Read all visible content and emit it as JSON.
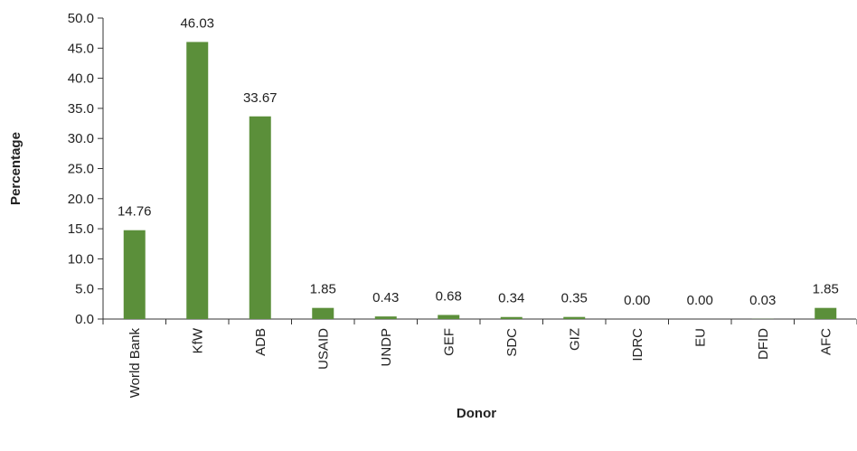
{
  "chart_data": {
    "type": "bar",
    "title": "",
    "xlabel": "Donor",
    "ylabel": "Percentage",
    "categories": [
      "World Bank",
      "KfW",
      "ADB",
      "USAID",
      "UNDP",
      "GEF",
      "SDC",
      "GIZ",
      "IDRC",
      "EU",
      "DFID",
      "AFC"
    ],
    "values": [
      14.76,
      46.03,
      33.67,
      1.85,
      0.43,
      0.68,
      0.34,
      0.35,
      0.0,
      0.0,
      0.03,
      1.85
    ],
    "value_labels": [
      "14.76",
      "46.03",
      "33.67",
      "1.85",
      "0.43",
      "0.68",
      "0.34",
      "0.35",
      "0.00",
      "0.00",
      "0.03",
      "1.85"
    ],
    "ylim": [
      0,
      50
    ],
    "yticks": [
      "0.0",
      "5.0",
      "10.0",
      "15.0",
      "20.0",
      "25.0",
      "30.0",
      "35.0",
      "40.0",
      "45.0",
      "50.0"
    ],
    "bar_color": "#5b8f3a",
    "grid": false,
    "legend": "none"
  }
}
